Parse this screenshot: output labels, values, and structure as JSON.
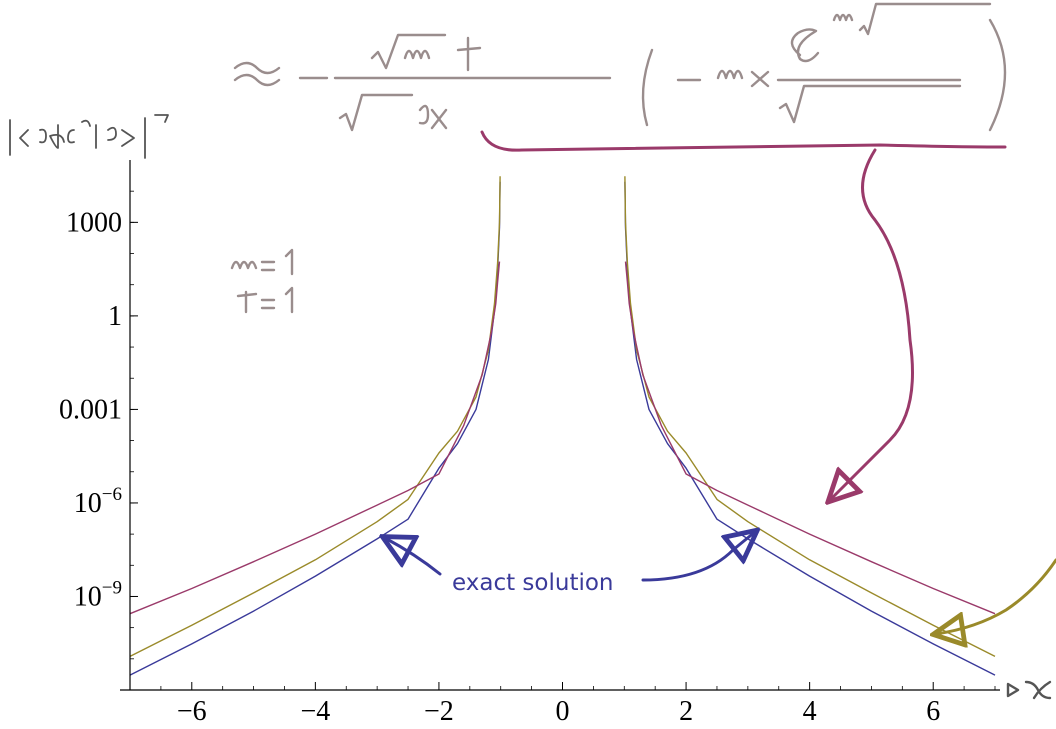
{
  "chart_data": {
    "type": "line",
    "title": "",
    "xlabel": "x",
    "ylabel": "|<x⁰| e^{-iHt} |x₀⁰>|²",
    "x_scale": "linear",
    "y_scale": "log",
    "xlim": [
      -7,
      7
    ],
    "ylim": [
      1e-12,
      100000.0
    ],
    "x_ticks": [
      -6,
      -4,
      -2,
      0,
      2,
      4,
      6
    ],
    "x_tick_labels": [
      "−6",
      "−4",
      "−2",
      "0",
      "2",
      "4",
      "6"
    ],
    "y_ticks": [
      {
        "value": 1000,
        "base": "1000",
        "exp": ""
      },
      {
        "value": 1,
        "base": "1",
        "exp": ""
      },
      {
        "value": 0.001,
        "base": "0.001",
        "exp": ""
      },
      {
        "value": 1e-06,
        "base": "10",
        "exp": "−6"
      },
      {
        "value": 1e-09,
        "base": "10",
        "exp": "−9"
      }
    ],
    "grid": false,
    "series": [
      {
        "color": "#3a3a9a",
        "segments": [
          {
            "x": [
              -7,
              -6,
              -5,
              -4,
              -3,
              -2.5,
              -2,
              -1.7,
              -1.4,
              -1.2,
              -1.1,
              -1.05,
              -1.02,
              -1.01
            ],
            "y": [
              3e-12,
              3e-11,
              3.4e-10,
              4.5e-09,
              7e-08,
              3e-07,
              1.3e-05,
              8e-05,
              0.001,
              0.04,
              1.5,
              30,
              700,
              20000
            ]
          },
          {
            "x": [
              1.01,
              1.02,
              1.05,
              1.1,
              1.2,
              1.4,
              1.7,
              2,
              2.5,
              3,
              4,
              5,
              6,
              7
            ],
            "y": [
              20000,
              700,
              30,
              1.5,
              0.04,
              0.001,
              8e-05,
              1.3e-05,
              3e-07,
              7e-08,
              4.5e-09,
              3.4e-10,
              3e-11,
              3e-12
            ]
          }
        ]
      },
      {
        "color": "#9a8a2a",
        "segments": [
          {
            "x": [
              -7,
              -6,
              -5,
              -4,
              -3,
              -2.5,
              -2,
              -1.7,
              -1.4,
              -1.2,
              -1.1,
              -1.05,
              -1.02,
              -1.01
            ],
            "y": [
              1.2e-11,
              1.2e-10,
              1.3e-09,
              1.5e-08,
              2.5e-07,
              1.3e-06,
              4e-05,
              0.0002,
              0.0025,
              0.08,
              2.5,
              50,
              1000,
              30000
            ]
          },
          {
            "x": [
              1.01,
              1.02,
              1.05,
              1.1,
              1.2,
              1.4,
              1.7,
              2,
              2.5,
              3,
              4,
              5,
              6,
              7
            ],
            "y": [
              30000,
              1000,
              50,
              2.5,
              0.08,
              0.0025,
              0.0002,
              4e-05,
              1.3e-06,
              2.5e-07,
              1.5e-08,
              1.3e-09,
              1.2e-10,
              1.2e-11
            ]
          }
        ]
      },
      {
        "color": "#9a3a6a",
        "segments": [
          {
            "x": [
              -7,
              -6,
              -5,
              -4,
              -3,
              -2.5,
              -2,
              -1.6,
              -1.3,
              -1.15,
              -1.08,
              -1.05,
              -1.02
            ],
            "y": [
              2.8e-10,
              1.8e-09,
              1.3e-08,
              1e-07,
              8.5e-07,
              2.5e-06,
              8.5e-06,
              0.0003,
              0.013,
              0.3,
              2.5,
              12,
              55
            ]
          },
          {
            "x": [
              1.02,
              1.05,
              1.08,
              1.15,
              1.3,
              1.6,
              2,
              2.5,
              3,
              4,
              5,
              6,
              7
            ],
            "y": [
              55,
              12,
              2.5,
              0.3,
              0.013,
              0.0003,
              8.5e-06,
              2.5e-06,
              8.5e-07,
              1e-07,
              1.3e-08,
              1.8e-09,
              2.8e-10
            ]
          }
        ]
      }
    ],
    "annotations": {
      "exact_solution": "exact solution",
      "params": [
        "m = 1",
        "t = 1"
      ]
    }
  }
}
